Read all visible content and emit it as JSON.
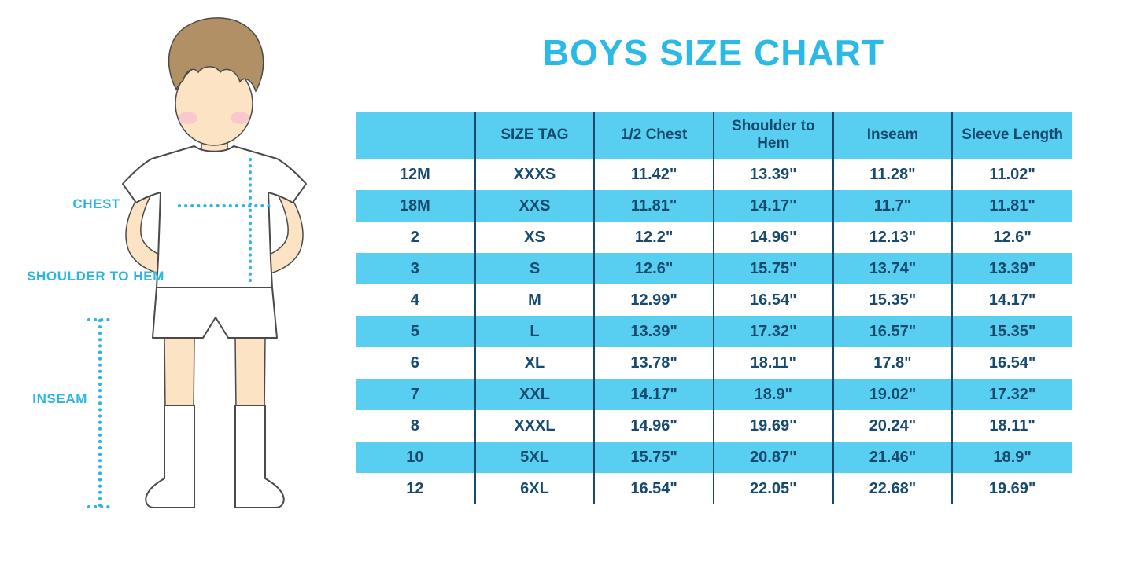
{
  "page": {
    "title": "BOYS SIZE CHART"
  },
  "illustration": {
    "labels": {
      "chest": "CHEST",
      "shoulder_to_hem": "SHOULDER TO HEM",
      "inseam": "INSEAM"
    }
  },
  "chart_data": {
    "type": "table",
    "title": "BOYS SIZE CHART",
    "columns": [
      "",
      "SIZE TAG",
      "1/2 Chest",
      "Shoulder to Hem",
      "Inseam",
      "Sleeve Length"
    ],
    "rows": [
      [
        "12M",
        "XXXS",
        "11.42\"",
        "13.39\"",
        "11.28\"",
        "11.02\""
      ],
      [
        "18M",
        "XXS",
        "11.81\"",
        "14.17\"",
        "11.7\"",
        "11.81\""
      ],
      [
        "2",
        "XS",
        "12.2\"",
        "14.96\"",
        "12.13\"",
        "12.6\""
      ],
      [
        "3",
        "S",
        "12.6\"",
        "15.75\"",
        "13.74\"",
        "13.39\""
      ],
      [
        "4",
        "M",
        "12.99\"",
        "16.54\"",
        "15.35\"",
        "14.17\""
      ],
      [
        "5",
        "L",
        "13.39\"",
        "17.32\"",
        "16.57\"",
        "15.35\""
      ],
      [
        "6",
        "XL",
        "13.78\"",
        "18.11\"",
        "17.8\"",
        "16.54\""
      ],
      [
        "7",
        "XXL",
        "14.17\"",
        "18.9\"",
        "19.02\"",
        "17.32\""
      ],
      [
        "8",
        "XXXL",
        "14.96\"",
        "19.69\"",
        "20.24\"",
        "18.11\""
      ],
      [
        "10",
        "5XL",
        "15.75\"",
        "20.87\"",
        "21.46\"",
        "18.9\""
      ],
      [
        "12",
        "6XL",
        "16.54\"",
        "22.05\"",
        "22.68\"",
        "19.69\""
      ]
    ],
    "layout": {
      "header_bg": "#58cff0",
      "alt_row_bg": "#58cff0",
      "base_row_bg": "#ffffff",
      "text_color": "#174a6e",
      "grid_color": "#174a6e",
      "title_color": "#2bbae8",
      "accent_color": "#2ab5e3",
      "striping": "header and every second data row cyan",
      "grid": "vertical column separators only"
    }
  }
}
